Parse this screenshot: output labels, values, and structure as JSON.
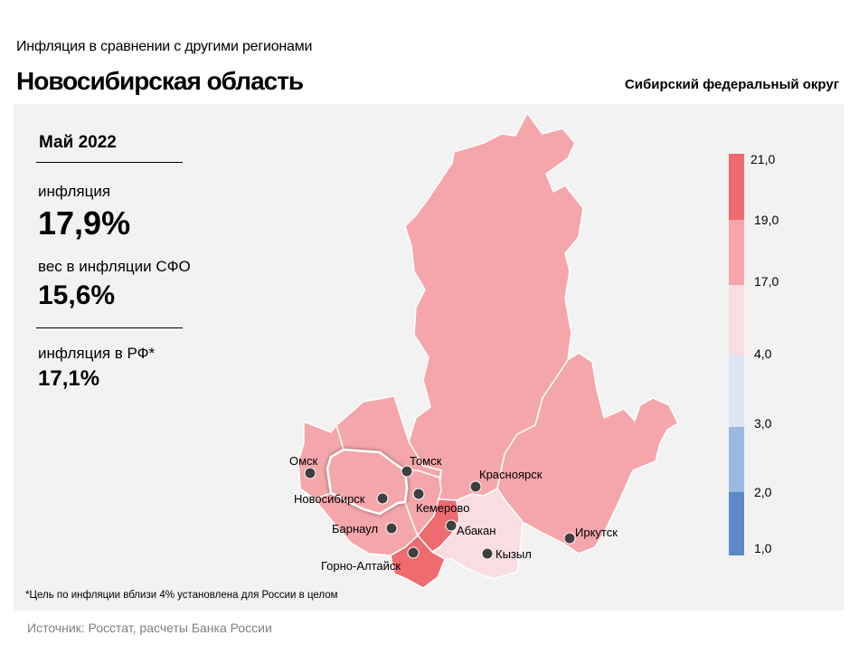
{
  "header": {
    "subtitle": "Инфляция  в сравнении  с другими  регионами",
    "title": "Новосибирская область",
    "district": "Сибирский федеральный округ"
  },
  "stats": {
    "period": "Май 2022",
    "inflation_label": "инфляция",
    "inflation_value": "17,9%",
    "weight_label": "вес в инфляции  СФО",
    "weight_value": "15,6%",
    "rf_label": "инфляция  в РФ*",
    "rf_value": "17,1%"
  },
  "footnote": "*Цель по инфляции вблизи 4% установлена для России в целом",
  "source": "Источник: Росстат, расчеты Банка России",
  "legend": {
    "bins": [
      {
        "from": "1,0",
        "to": "2,0",
        "color": "#5b8ac6"
      },
      {
        "from": "2,0",
        "to": "3,0",
        "color": "#9ab9df"
      },
      {
        "from": "3,0",
        "to": "4,0",
        "color": "#dbe5f4"
      },
      {
        "from": "4,0",
        "to": "17,0",
        "color": "#f9dde0"
      },
      {
        "from": "17,0",
        "to": "19,0",
        "color": "#f4a6aa"
      },
      {
        "from": "19,0",
        "to": "21,0",
        "color": "#ee6b70"
      }
    ],
    "ticks": [
      "1,0",
      "2,0",
      "3,0",
      "4,0",
      "17,0",
      "19,0",
      "21,0"
    ]
  },
  "map": {
    "cities": [
      {
        "name": "Омск"
      },
      {
        "name": "Томск"
      },
      {
        "name": "Новосибирск"
      },
      {
        "name": "Кемерово"
      },
      {
        "name": "Красноярск"
      },
      {
        "name": "Барнаул"
      },
      {
        "name": "Абакан"
      },
      {
        "name": "Горно-Алтайск"
      },
      {
        "name": "Кызыл"
      },
      {
        "name": "Иркутск"
      }
    ]
  }
}
